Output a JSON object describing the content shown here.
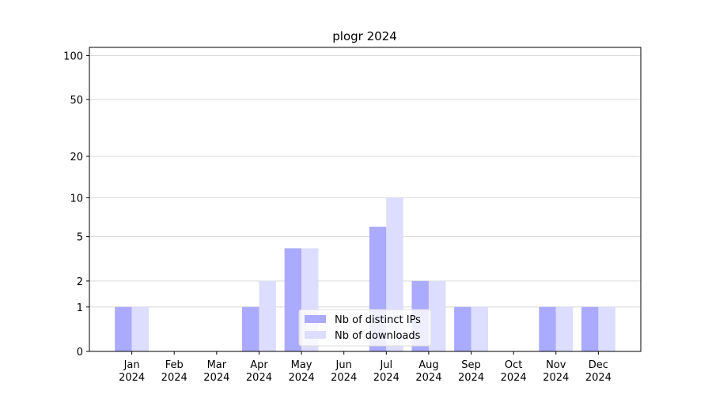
{
  "chart_data": {
    "type": "bar",
    "title": "plogr 2024",
    "categories": [
      "Jan\n2024",
      "Feb\n2024",
      "Mar\n2024",
      "Apr\n2024",
      "May\n2024",
      "Jun\n2024",
      "Jul\n2024",
      "Aug\n2024",
      "Sep\n2024",
      "Oct\n2024",
      "Nov\n2024",
      "Dec\n2024"
    ],
    "series": [
      {
        "name": "Nb of distinct IPs",
        "color": "#aaaaff",
        "values": [
          1,
          0,
          0,
          1,
          4,
          0,
          6,
          2,
          1,
          0,
          1,
          1
        ]
      },
      {
        "name": "Nb of downloads",
        "color": "#ddddff",
        "values": [
          1,
          0,
          0,
          2,
          4,
          0,
          10,
          2,
          1,
          0,
          1,
          1
        ]
      }
    ],
    "yscale": "log1p",
    "ylim": [
      0,
      114
    ],
    "yticks": [
      0,
      1,
      2,
      5,
      10,
      20,
      50,
      100
    ],
    "grid": true,
    "legend": "lower center"
  }
}
